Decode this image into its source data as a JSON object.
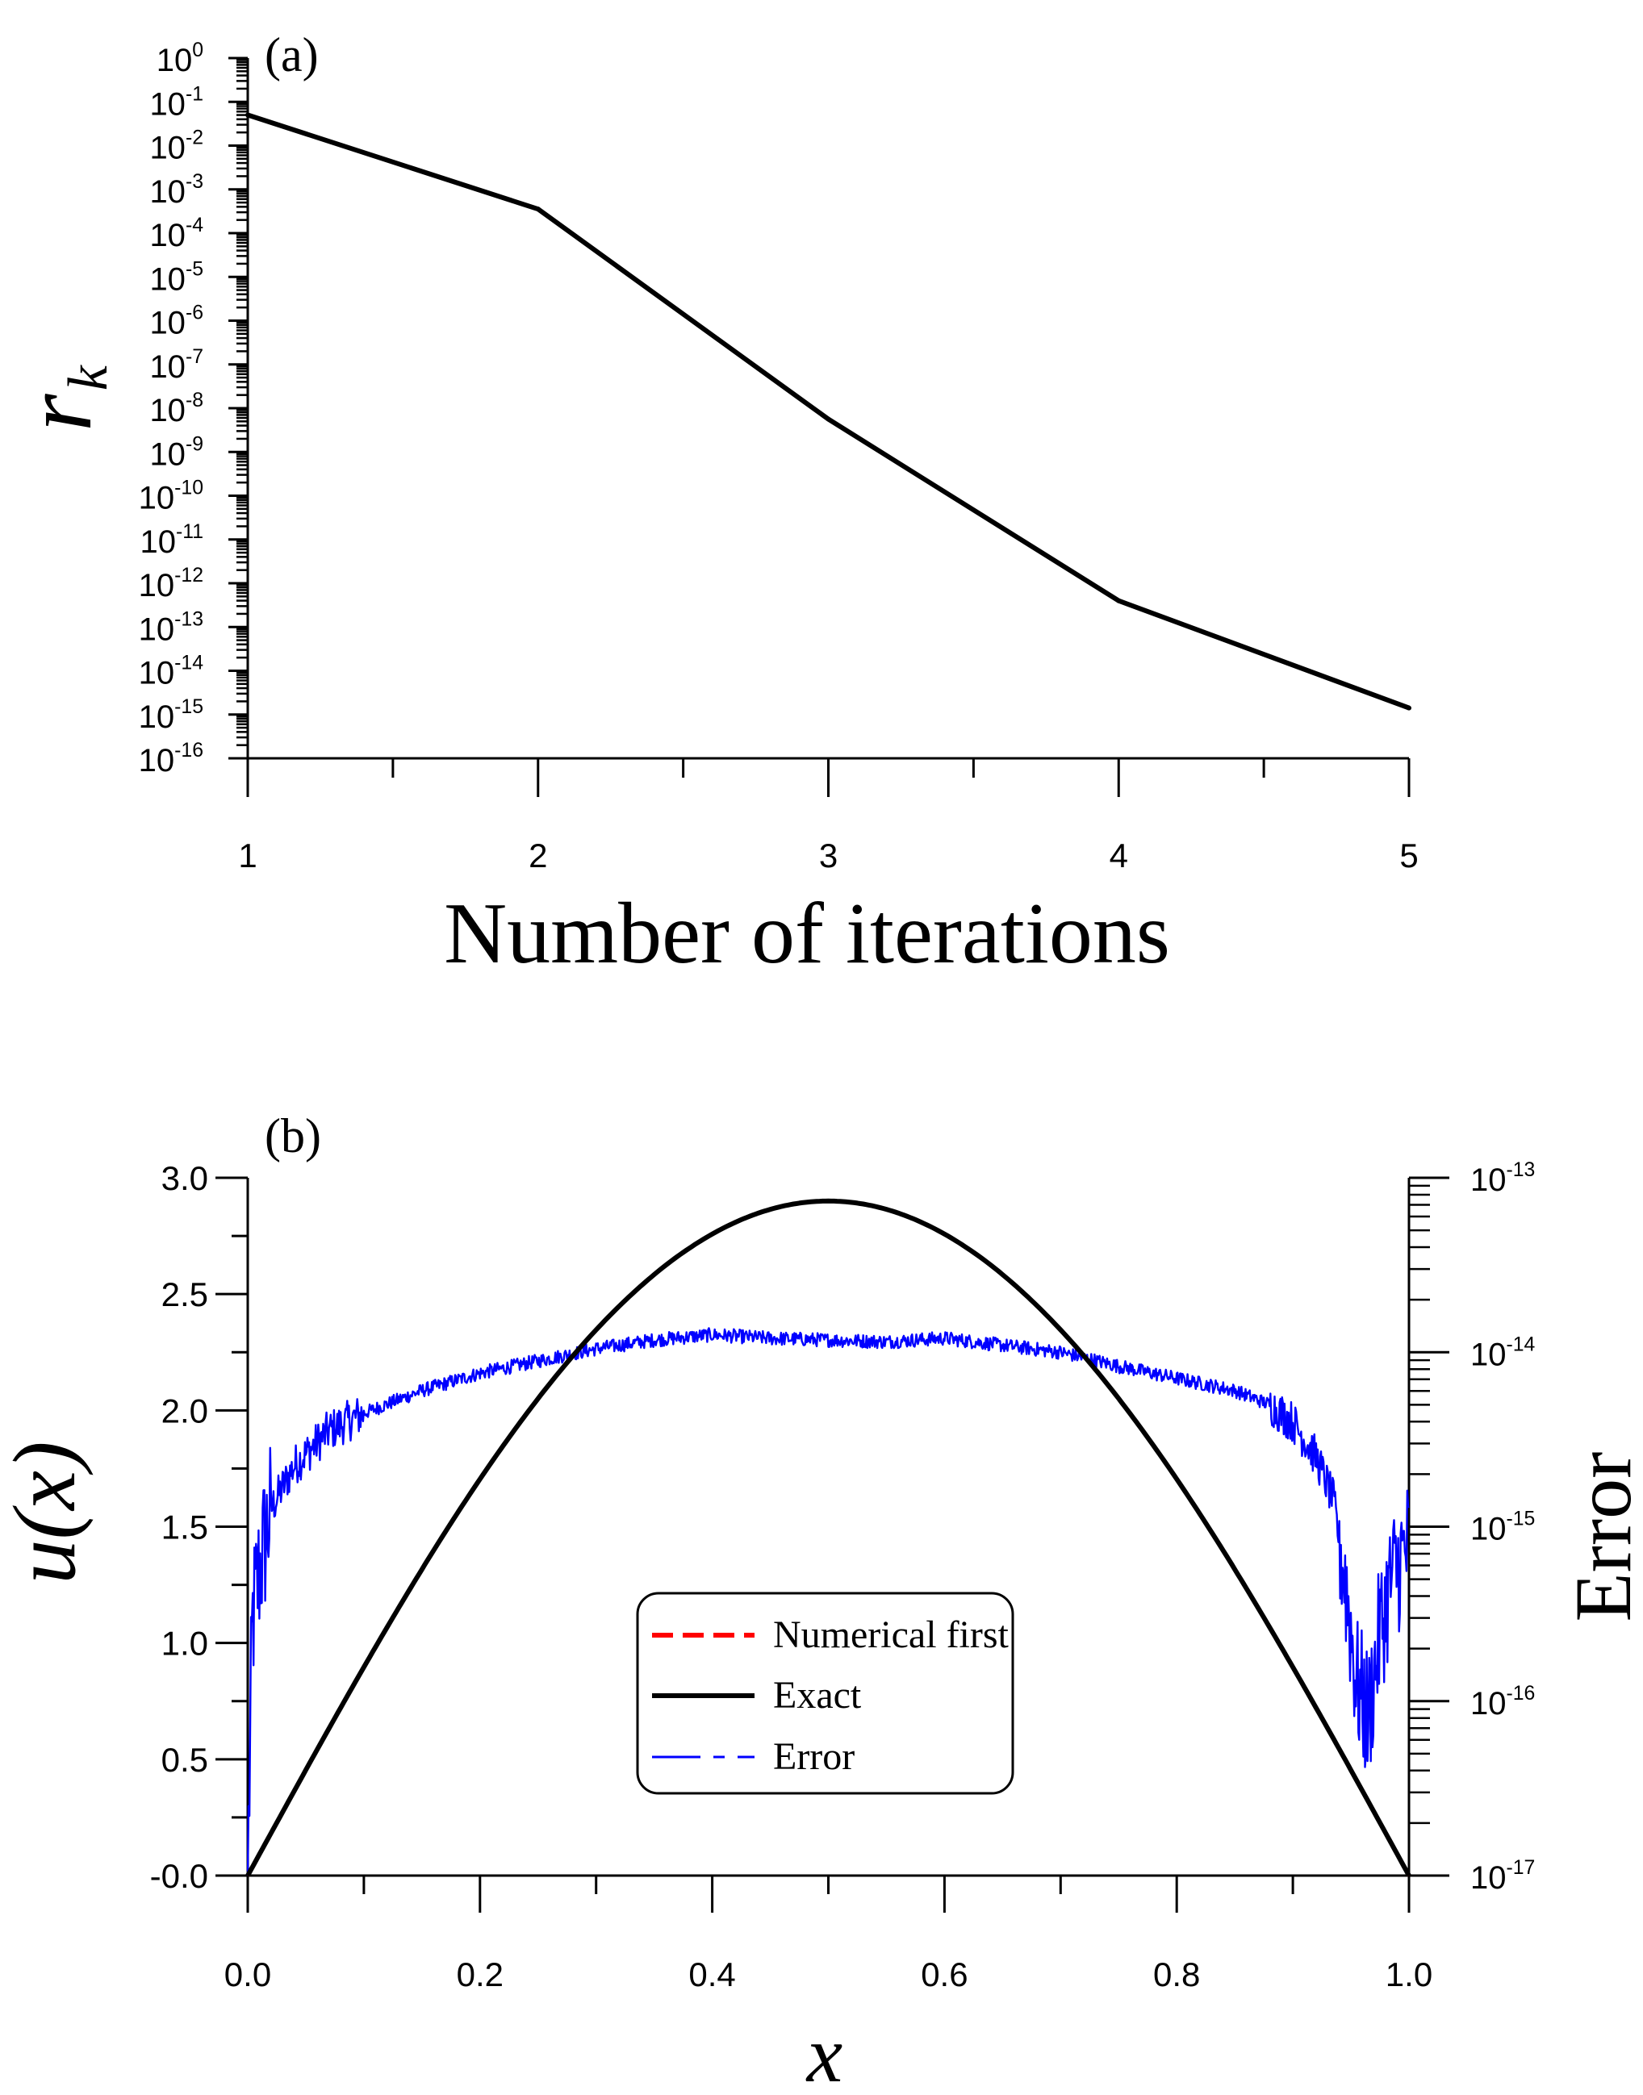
{
  "chart_data": [
    {
      "panel_label": "(a)",
      "type": "line",
      "ylabel_main": "r",
      "ylabel_sub": "k",
      "xlabel": "Number of iterations",
      "x_ticks": [
        "1",
        "2",
        "3",
        "4",
        "5"
      ],
      "y_scale": "log",
      "y_tick_exponents": [
        "0",
        "-1",
        "-2",
        "-3",
        "-4",
        "-5",
        "-6",
        "-7",
        "-8",
        "-9",
        "-10",
        "-11",
        "-12",
        "-13",
        "-14",
        "-15",
        "-16"
      ],
      "y_tick_base": "10",
      "series": [
        {
          "name": "r_k",
          "x": [
            1,
            2,
            3,
            4,
            5
          ],
          "y_log10": [
            -1.3,
            -3.45,
            -8.25,
            -12.4,
            -14.85
          ]
        }
      ],
      "xlim": [
        1,
        5
      ],
      "ylim_log10": [
        -16,
        0
      ],
      "colors": {
        "line": "#000000"
      }
    },
    {
      "panel_label": "(b)",
      "type": "line",
      "xlabel": "x",
      "ylabel_left": "u(x)",
      "ylabel_right": "Error",
      "x_ticks": [
        "0.0",
        "0.2",
        "0.4",
        "0.6",
        "0.8",
        "1.0"
      ],
      "y_ticks_left": [
        "-0.0",
        "0.5",
        "1.0",
        "1.5",
        "2.0",
        "2.5",
        "3.0"
      ],
      "y_tick_exponents_right": [
        "-17",
        "-16",
        "-15",
        "-14",
        "-13"
      ],
      "y_tick_base": "10",
      "xlim": [
        0,
        1
      ],
      "ylim_left": [
        0,
        3.0
      ],
      "ylim_right_log10": [
        -17,
        -13
      ],
      "exact_function": "2.9*sin(pi*x)",
      "exact_peak": 2.9,
      "error_envelope": {
        "x": [
          0,
          0.004,
          0.01,
          0.02,
          0.04,
          0.07,
          0.1,
          0.15,
          0.2,
          0.25,
          0.3,
          0.35,
          0.4,
          0.45,
          0.5,
          0.55,
          0.6,
          0.65,
          0.7,
          0.75,
          0.8,
          0.85,
          0.88,
          0.9,
          0.92,
          0.935,
          0.945,
          0.955,
          0.965,
          0.975,
          0.985,
          1.0
        ],
        "log10": [
          -17,
          -15.55,
          -15.25,
          -14.9,
          -14.65,
          -14.45,
          -14.35,
          -14.22,
          -14.12,
          -14.05,
          -13.98,
          -13.93,
          -13.9,
          -13.92,
          -13.93,
          -13.94,
          -13.92,
          -13.96,
          -14.0,
          -14.08,
          -14.15,
          -14.22,
          -14.3,
          -14.4,
          -14.6,
          -14.85,
          -15.3,
          -15.9,
          -16.1,
          -15.6,
          -15.3,
          -15.1
        ]
      },
      "legend": {
        "position": "center",
        "entries": [
          {
            "label": "Numerical first",
            "color": "#ff0000",
            "style": "dashed"
          },
          {
            "label": "Exact",
            "color": "#000000",
            "style": "solid"
          },
          {
            "label": "Error",
            "color": "#0000ff",
            "style": "dash"
          }
        ]
      },
      "colors": {
        "exact": "#000000",
        "numerical": "#ff0000",
        "error": "#0000ff"
      }
    }
  ]
}
